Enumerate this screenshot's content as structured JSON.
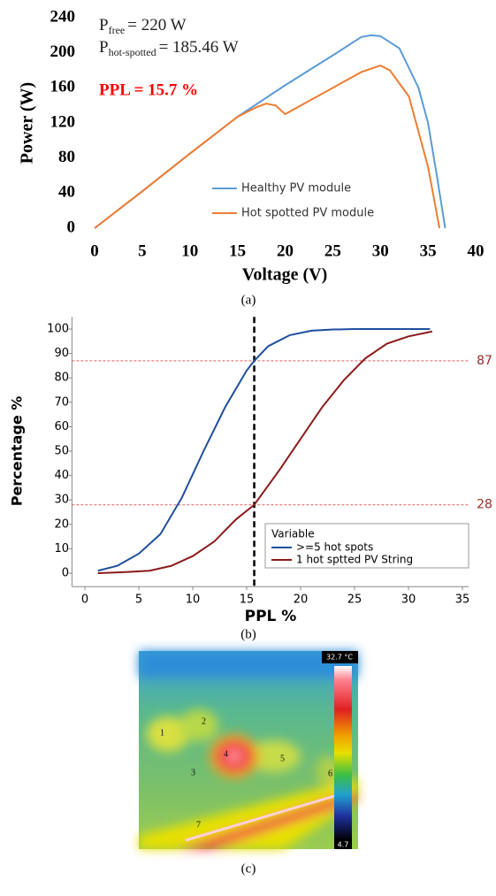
{
  "chart_data": [
    {
      "type": "line",
      "xlabel": "Voltage (V)",
      "ylabel": "Power (W)",
      "xlim": [
        0,
        40
      ],
      "xticks": [
        0,
        5,
        10,
        15,
        20,
        25,
        30,
        35,
        40
      ],
      "ylim": [
        0,
        240
      ],
      "yticks": [
        0,
        40,
        80,
        120,
        160,
        200,
        240
      ],
      "annotations": [
        {
          "symbol": "P",
          "subscript": "free",
          "text": "= 220 W"
        },
        {
          "symbol": "P",
          "subscript": "hot-spotted",
          "text": "= 185.46 W"
        },
        {
          "text": "PPL = 15.7 %",
          "color": "#ff0000"
        }
      ],
      "legend": "lower center",
      "series": [
        {
          "name": "Healthy PV module",
          "color": "#5b9bd5",
          "x": [
            0,
            5,
            10,
            15,
            20,
            25,
            28,
            29,
            30,
            32,
            34,
            35,
            36,
            36.8
          ],
          "values": [
            0,
            42,
            85,
            127,
            163,
            197,
            218,
            220,
            219,
            205,
            160,
            120,
            55,
            0
          ]
        },
        {
          "name": "Hot spotted PV module",
          "color": "#ed7d31",
          "x": [
            0,
            5,
            10,
            15,
            17,
            18,
            19,
            20,
            22,
            25,
            28,
            30,
            31,
            33,
            35,
            36.2
          ],
          "values": [
            0,
            42,
            85,
            127,
            138,
            142,
            140,
            130,
            142,
            160,
            178,
            185.46,
            180,
            150,
            70,
            0
          ]
        }
      ]
    },
    {
      "type": "line",
      "xlabel": "PPL %",
      "ylabel": "Percentage %",
      "xlim": [
        -1.2,
        35.6
      ],
      "xticks": [
        0,
        5,
        10,
        15,
        20,
        25,
        30,
        35
      ],
      "ylim": [
        -5.5,
        105
      ],
      "yticks": [
        0,
        10,
        20,
        30,
        40,
        50,
        60,
        70,
        80,
        90,
        100
      ],
      "hlines": [
        87,
        28
      ],
      "hline_color": "#e06060",
      "hline_label_color": "#9b2a2a",
      "vline": 15.7,
      "vline_color": "#000000",
      "legend_title": "Variable",
      "legend": "lower right",
      "series": [
        {
          "name": ">=5 hot spots",
          "color": "#1f4e9c",
          "x": [
            1.2,
            3,
            5,
            7,
            9,
            11,
            13,
            15,
            15.7,
            17,
            19,
            21,
            23,
            25,
            32
          ],
          "values": [
            1,
            3,
            8,
            16,
            31,
            50,
            68,
            83,
            87,
            93,
            97.5,
            99.3,
            99.8,
            100,
            100
          ]
        },
        {
          "name": "1 hot sptted PV String",
          "color": "#8b1a1a",
          "x": [
            1.2,
            4,
            6,
            8,
            10,
            12,
            14,
            15.7,
            18,
            20,
            22,
            24,
            26,
            28,
            30,
            32.2
          ],
          "values": [
            0,
            0.5,
            1,
            3,
            7,
            13,
            22,
            28,
            42,
            55,
            68,
            79,
            88,
            94,
            97,
            99
          ]
        }
      ]
    }
  ],
  "captions": [
    "(a)",
    "(b)",
    "(c)"
  ],
  "thermal_image": {
    "colorbar_max": "32.7 °C",
    "colorbar_min": "4.7",
    "spot_labels": [
      "1",
      "2",
      "3",
      "4",
      "5",
      "6",
      "7"
    ]
  }
}
